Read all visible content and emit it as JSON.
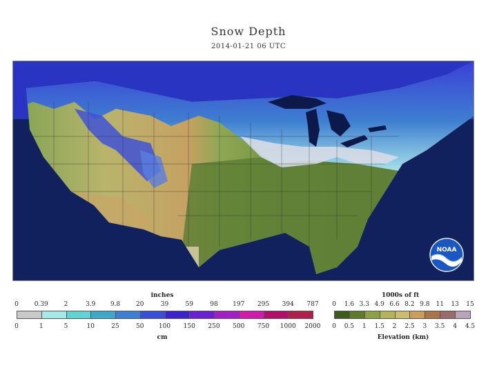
{
  "title": "Snow Depth",
  "subtitle": "2014-01-21 06 UTC",
  "logo_text": "NOAA",
  "snow_legend": {
    "title_top": "inches",
    "title_bottom": "cm",
    "inches": [
      "0",
      "0.39",
      "2",
      "3.9",
      "9.8",
      "20",
      "39",
      "59",
      "98",
      "197",
      "295",
      "394",
      "787"
    ],
    "cm": [
      "0",
      "1",
      "5",
      "10",
      "25",
      "50",
      "100",
      "150",
      "250",
      "500",
      "750",
      "1000",
      "2000"
    ],
    "colors": [
      "#c9c9c9",
      "#a6e9e9",
      "#5fd3d3",
      "#3fa8c6",
      "#3f7fd1",
      "#3a4fd8",
      "#3a24c9",
      "#6b1fd2",
      "#a21fc6",
      "#d01aa9",
      "#b0106b",
      "#b0204a"
    ]
  },
  "elevation_legend": {
    "title_top": "1000s of ft",
    "title_bottom": "Elevation (km)",
    "ft": [
      "0",
      "1.6",
      "3.3",
      "4.9",
      "6.6",
      "8.2",
      "9.8",
      "11",
      "13",
      "15"
    ],
    "km": [
      "0",
      "0.5",
      "1",
      "1.5",
      "2",
      "2.5",
      "3",
      "3.5",
      "4",
      "4.5"
    ],
    "colors": [
      "#3c5b1d",
      "#5e7a2c",
      "#8da045",
      "#b6b35c",
      "#cdbb6e",
      "#c99e5c",
      "#a8764a",
      "#9a6b6b",
      "#b9a3b9"
    ]
  }
}
